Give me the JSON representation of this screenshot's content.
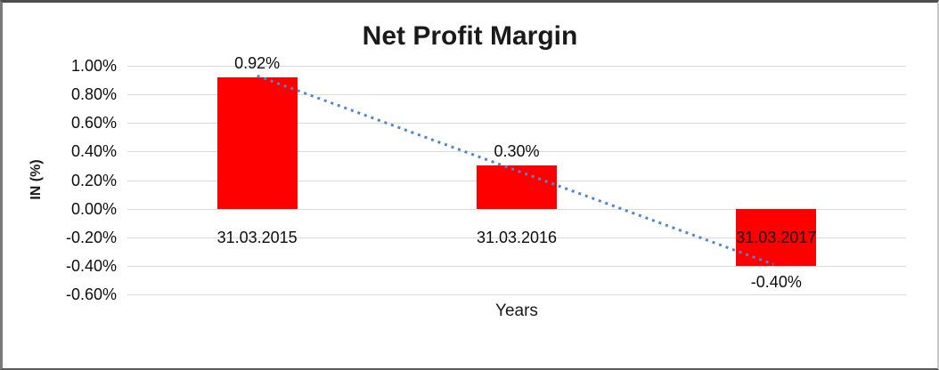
{
  "chart_data": {
    "type": "bar",
    "title": "Net Profit Margin",
    "xlabel": "Years",
    "ylabel": "IN (%)",
    "categories": [
      "31.03.2015",
      "31.03.2016",
      "31.03.2017"
    ],
    "values": [
      0.92,
      0.3,
      -0.4
    ],
    "data_labels": [
      "0.92%",
      "0.30%",
      "-0.40%"
    ],
    "yticks": [
      {
        "value": 1.0,
        "label": "1.00%"
      },
      {
        "value": 0.8,
        "label": "0.80%"
      },
      {
        "value": 0.6,
        "label": "0.60%"
      },
      {
        "value": 0.4,
        "label": "0.40%"
      },
      {
        "value": 0.2,
        "label": "0.20%"
      },
      {
        "value": 0.0,
        "label": "0.00%"
      },
      {
        "value": -0.2,
        "label": "-0.20%"
      },
      {
        "value": -0.4,
        "label": "-0.40%"
      },
      {
        "value": -0.6,
        "label": "-0.60%"
      }
    ],
    "ylim": [
      -0.6,
      1.0
    ],
    "grid": true,
    "legend": "none",
    "colors": {
      "bar": "#FF0000",
      "trendline": "#4F87C8",
      "gridline": "#D9D9D9",
      "text": "#000000"
    },
    "trendline": {
      "style": "dotted",
      "start_value": 0.93,
      "end_value": -0.39
    }
  }
}
